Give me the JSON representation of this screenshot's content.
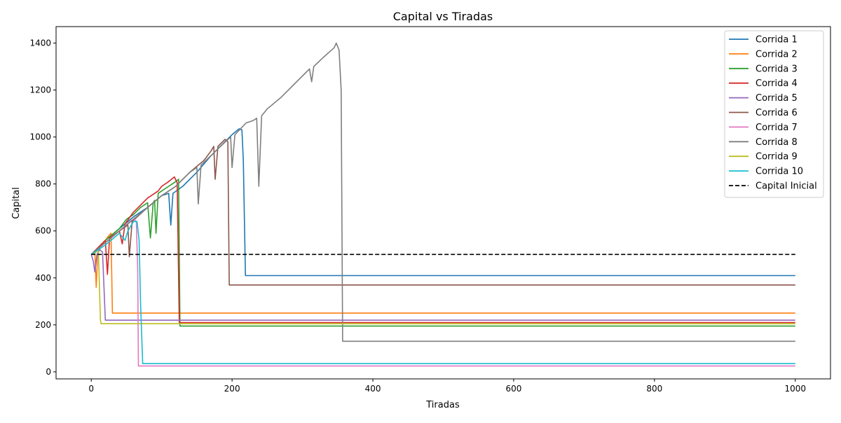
{
  "chart_data": {
    "type": "line",
    "title": "Capital vs Tiradas",
    "xlabel": "Tiradas",
    "ylabel": "Capital",
    "xlim": [
      -50,
      1050
    ],
    "ylim": [
      -30,
      1470
    ],
    "xticks": [
      0,
      200,
      400,
      600,
      800,
      1000
    ],
    "yticks": [
      0,
      200,
      400,
      600,
      800,
      1000,
      1200,
      1400
    ],
    "grid": false,
    "legend_position": "top-right",
    "series": [
      {
        "name": "Corrida 1",
        "color": "#1f77b4",
        "points": [
          [
            0,
            500
          ],
          [
            20,
            560
          ],
          [
            40,
            610
          ],
          [
            60,
            660
          ],
          [
            80,
            700
          ],
          [
            100,
            750
          ],
          [
            110,
            760
          ],
          [
            113,
            625
          ],
          [
            116,
            760
          ],
          [
            130,
            790
          ],
          [
            150,
            850
          ],
          [
            170,
            920
          ],
          [
            190,
            980
          ],
          [
            200,
            1010
          ],
          [
            210,
            1035
          ],
          [
            214,
            1030
          ],
          [
            216,
            900
          ],
          [
            219,
            410
          ],
          [
            1000,
            410
          ]
        ]
      },
      {
        "name": "Corrida 2",
        "color": "#ff7f0e",
        "points": [
          [
            0,
            500
          ],
          [
            5,
            510
          ],
          [
            7,
            360
          ],
          [
            9,
            500
          ],
          [
            11,
            530
          ],
          [
            15,
            540
          ],
          [
            20,
            560
          ],
          [
            25,
            580
          ],
          [
            28,
            590
          ],
          [
            30,
            250
          ],
          [
            1000,
            250
          ]
        ]
      },
      {
        "name": "Corrida 3",
        "color": "#2ca02c",
        "points": [
          [
            0,
            500
          ],
          [
            20,
            560
          ],
          [
            40,
            610
          ],
          [
            50,
            650
          ],
          [
            60,
            670
          ],
          [
            70,
            700
          ],
          [
            80,
            720
          ],
          [
            84,
            570
          ],
          [
            88,
            720
          ],
          [
            90,
            730
          ],
          [
            92,
            590
          ],
          [
            95,
            760
          ],
          [
            110,
            790
          ],
          [
            120,
            810
          ],
          [
            124,
            820
          ],
          [
            126,
            195
          ],
          [
            1000,
            195
          ]
        ]
      },
      {
        "name": "Corrida 4",
        "color": "#d62728",
        "points": [
          [
            0,
            500
          ],
          [
            10,
            530
          ],
          [
            20,
            560
          ],
          [
            23,
            415
          ],
          [
            26,
            570
          ],
          [
            40,
            600
          ],
          [
            44,
            545
          ],
          [
            48,
            630
          ],
          [
            60,
            680
          ],
          [
            80,
            740
          ],
          [
            95,
            770
          ],
          [
            100,
            790
          ],
          [
            110,
            810
          ],
          [
            118,
            830
          ],
          [
            122,
            805
          ],
          [
            125,
            210
          ],
          [
            1000,
            210
          ]
        ]
      },
      {
        "name": "Corrida 5",
        "color": "#9467bd",
        "points": [
          [
            0,
            500
          ],
          [
            3,
            470
          ],
          [
            5,
            425
          ],
          [
            8,
            500
          ],
          [
            12,
            520
          ],
          [
            16,
            510
          ],
          [
            20,
            220
          ],
          [
            1000,
            220
          ]
        ]
      },
      {
        "name": "Corrida 6",
        "color": "#8c564b",
        "points": [
          [
            0,
            500
          ],
          [
            20,
            550
          ],
          [
            40,
            600
          ],
          [
            52,
            625
          ],
          [
            54,
            490
          ],
          [
            58,
            640
          ],
          [
            80,
            700
          ],
          [
            100,
            750
          ],
          [
            120,
            790
          ],
          [
            140,
            850
          ],
          [
            160,
            900
          ],
          [
            170,
            940
          ],
          [
            174,
            960
          ],
          [
            176,
            820
          ],
          [
            180,
            960
          ],
          [
            190,
            990
          ],
          [
            194,
            980
          ],
          [
            196,
            370
          ],
          [
            1000,
            370
          ]
        ]
      },
      {
        "name": "Corrida 7",
        "color": "#e377c2",
        "points": [
          [
            0,
            500
          ],
          [
            20,
            550
          ],
          [
            40,
            600
          ],
          [
            55,
            640
          ],
          [
            60,
            650
          ],
          [
            64,
            640
          ],
          [
            66,
            430
          ],
          [
            67,
            25
          ],
          [
            1000,
            25
          ]
        ]
      },
      {
        "name": "Corrida 8",
        "color": "#7f7f7f",
        "points": [
          [
            0,
            500
          ],
          [
            20,
            550
          ],
          [
            40,
            600
          ],
          [
            60,
            650
          ],
          [
            80,
            700
          ],
          [
            100,
            750
          ],
          [
            120,
            790
          ],
          [
            140,
            850
          ],
          [
            150,
            870
          ],
          [
            152,
            715
          ],
          [
            156,
            880
          ],
          [
            180,
            950
          ],
          [
            198,
            1000
          ],
          [
            200,
            870
          ],
          [
            204,
            1010
          ],
          [
            220,
            1060
          ],
          [
            230,
            1070
          ],
          [
            235,
            1080
          ],
          [
            238,
            790
          ],
          [
            242,
            1090
          ],
          [
            250,
            1120
          ],
          [
            270,
            1170
          ],
          [
            290,
            1230
          ],
          [
            310,
            1290
          ],
          [
            313,
            1235
          ],
          [
            316,
            1300
          ],
          [
            330,
            1340
          ],
          [
            345,
            1380
          ],
          [
            348,
            1400
          ],
          [
            352,
            1370
          ],
          [
            355,
            1200
          ],
          [
            357,
            130
          ],
          [
            1000,
            130
          ]
        ]
      },
      {
        "name": "Corrida 9",
        "color": "#bcbd22",
        "points": [
          [
            0,
            500
          ],
          [
            5,
            505
          ],
          [
            10,
            520
          ],
          [
            13,
            220
          ],
          [
            14,
            205
          ],
          [
            1000,
            205
          ]
        ]
      },
      {
        "name": "Corrida 10",
        "color": "#17becf",
        "points": [
          [
            0,
            500
          ],
          [
            20,
            540
          ],
          [
            40,
            590
          ],
          [
            48,
            560
          ],
          [
            52,
            600
          ],
          [
            60,
            640
          ],
          [
            65,
            640
          ],
          [
            68,
            560
          ],
          [
            70,
            300
          ],
          [
            73,
            35
          ],
          [
            1000,
            35
          ]
        ]
      },
      {
        "name": "Capital Inicial",
        "color": "#000000",
        "dashed": true,
        "points": [
          [
            0,
            500
          ],
          [
            1000,
            500
          ]
        ]
      }
    ]
  }
}
